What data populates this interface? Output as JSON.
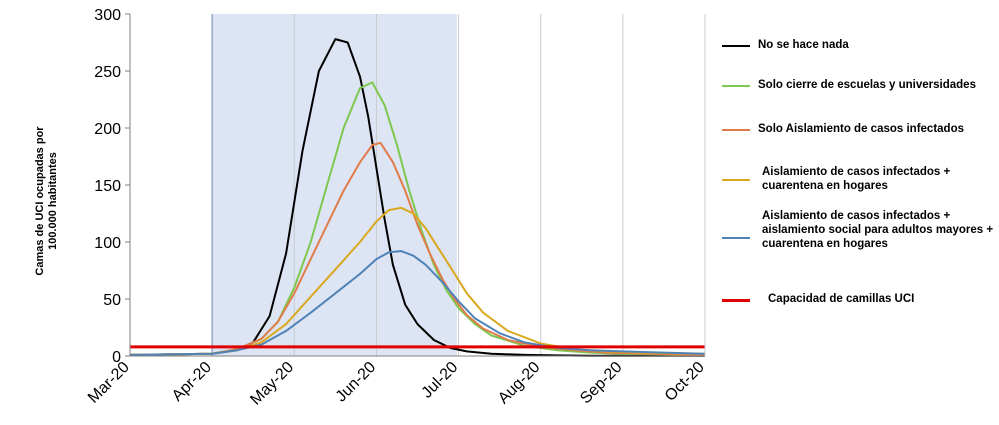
{
  "chart_data": {
    "type": "line",
    "title": "",
    "ylabel": "Camas de UCI ocupadas por\n100.000 habitantes",
    "xlabel": "",
    "ylim": [
      0,
      300
    ],
    "yticks": [
      0,
      50,
      100,
      150,
      200,
      250,
      300
    ],
    "x_ticks": [
      "Mar-20",
      "Apr-20",
      "May-20",
      "Jun-20",
      "Jul-20",
      "Aug-20",
      "Sep-20",
      "Oct-20"
    ],
    "shaded_region": {
      "from": 1,
      "to": 3.98,
      "color": "#dde4f3"
    },
    "grid": true,
    "legend_position": "right",
    "series": [
      {
        "name": "No se hace nada",
        "color": "#000000",
        "x": [
          0,
          1,
          1.3,
          1.5,
          1.7,
          1.9,
          2.1,
          2.3,
          2.5,
          2.65,
          2.8,
          2.9,
          3.0,
          3.1,
          3.2,
          3.35,
          3.5,
          3.7,
          3.9,
          4.1,
          4.4,
          4.8,
          5.2,
          5.6,
          7.0
        ],
        "y": [
          1,
          2,
          5,
          12,
          35,
          90,
          180,
          250,
          278,
          275,
          245,
          210,
          165,
          120,
          80,
          45,
          28,
          14,
          7,
          4,
          2,
          1,
          0.5,
          0.3,
          0.2
        ]
      },
      {
        "name": "Solo cierre de escuelas y universidades",
        "color": "#7ec850",
        "x": [
          0,
          1,
          1.3,
          1.6,
          1.8,
          2.0,
          2.2,
          2.4,
          2.6,
          2.8,
          2.95,
          3.1,
          3.25,
          3.4,
          3.55,
          3.7,
          3.85,
          4.0,
          4.2,
          4.4,
          4.8,
          5.2,
          5.6,
          6.0,
          7.0
        ],
        "y": [
          1,
          2,
          6,
          15,
          30,
          60,
          100,
          150,
          200,
          235,
          240,
          220,
          185,
          145,
          110,
          80,
          58,
          42,
          28,
          18,
          9,
          5,
          3,
          2,
          1
        ]
      },
      {
        "name": "Solo Aislamiento de casos infectados",
        "color": "#e07c4a",
        "x": [
          0,
          1,
          1.3,
          1.6,
          1.8,
          2.0,
          2.2,
          2.4,
          2.6,
          2.8,
          2.95,
          3.05,
          3.2,
          3.35,
          3.5,
          3.65,
          3.8,
          3.95,
          4.1,
          4.3,
          4.6,
          5.0,
          5.4,
          5.8,
          6.3,
          7.0
        ],
        "y": [
          1,
          2,
          6,
          15,
          30,
          55,
          85,
          115,
          145,
          170,
          185,
          187,
          170,
          145,
          115,
          90,
          68,
          50,
          36,
          24,
          14,
          8,
          5,
          3,
          2,
          1
        ]
      },
      {
        "name": "Aislamiento de casos infectados +\ncuarentena en hogares",
        "color": "#d9a81e",
        "x": [
          0,
          1,
          1.3,
          1.6,
          1.9,
          2.2,
          2.5,
          2.8,
          3.0,
          3.15,
          3.3,
          3.45,
          3.6,
          3.75,
          3.9,
          4.1,
          4.3,
          4.6,
          5.0,
          5.4,
          5.8,
          6.2,
          7.0
        ],
        "y": [
          1,
          2,
          5,
          12,
          28,
          52,
          76,
          100,
          118,
          128,
          130,
          125,
          112,
          95,
          78,
          55,
          38,
          22,
          11,
          6,
          4,
          3,
          2
        ]
      },
      {
        "name": "Aislamiento de casos infectados +\naislamiento social para adultos mayores +\ncuarentena en hogares",
        "color": "#4f83b8",
        "x": [
          0,
          1,
          1.3,
          1.6,
          1.9,
          2.2,
          2.5,
          2.8,
          3.0,
          3.15,
          3.3,
          3.45,
          3.6,
          3.8,
          4.0,
          4.2,
          4.5,
          4.8,
          5.2,
          5.6,
          6.0,
          6.5,
          7.0
        ],
        "y": [
          1,
          2,
          5,
          10,
          22,
          38,
          55,
          72,
          85,
          91,
          92,
          88,
          80,
          65,
          48,
          33,
          20,
          12,
          7,
          5,
          4,
          3,
          2
        ]
      },
      {
        "name": "Capacidad de camillas UCI",
        "color": "#e00000",
        "x": [
          0,
          7.0
        ],
        "y": [
          8,
          8
        ]
      }
    ]
  }
}
